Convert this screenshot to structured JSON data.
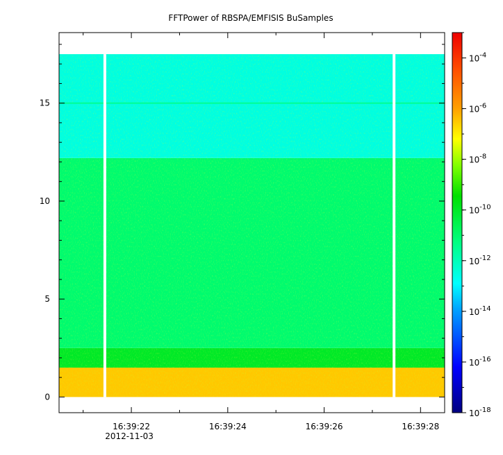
{
  "chart_data": {
    "type": "heatmap",
    "title": "FFTPower of RBSPA/EMFISIS  BuSamples",
    "xlabel": "",
    "ylabel": "",
    "x": {
      "type": "time",
      "range": [
        "16:39:20.5",
        "16:39:28.5"
      ],
      "major_ticks": [
        {
          "value": "16:39:22",
          "label": "16:39:22",
          "sublabel": "2012-11-03"
        },
        {
          "value": "16:39:24",
          "label": "16:39:24"
        },
        {
          "value": "16:39:26",
          "label": "16:39:26"
        },
        {
          "value": "16:39:28",
          "label": "16:39:28"
        }
      ],
      "minor_ticks": [
        "16:39:21",
        "16:39:23",
        "16:39:25",
        "16:39:27"
      ]
    },
    "y": {
      "range": [
        -0.8,
        18.6
      ],
      "ticks": [
        0,
        5,
        10,
        15
      ]
    },
    "colorbar": {
      "scale": "log",
      "range": [
        1e-18,
        0.001
      ],
      "tick_labels": [
        {
          "base": "10",
          "exp": "-4",
          "value": -4
        },
        {
          "base": "10",
          "exp": "-6",
          "value": -6
        },
        {
          "base": "10",
          "exp": "-8",
          "value": -8
        },
        {
          "base": "10",
          "exp": "-10",
          "value": -10
        },
        {
          "base": "10",
          "exp": "-12",
          "value": -12
        },
        {
          "base": "10",
          "exp": "-14",
          "value": -14
        },
        {
          "base": "10",
          "exp": "-16",
          "value": -16
        },
        {
          "base": "10",
          "exp": "-18",
          "value": -18
        }
      ]
    },
    "data_extent": {
      "time": [
        "16:39:20.5",
        "16:39:28.5"
      ],
      "y": [
        0,
        17.5
      ]
    },
    "gaps": [
      "16:39:21.45",
      "16:39:27.45"
    ],
    "bands": [
      {
        "y_range": [
          0,
          1.5
        ],
        "log10_power": -6.5
      },
      {
        "y_range": [
          1.5,
          2.5
        ],
        "log10_power": -10
      },
      {
        "y_range": [
          2.5,
          12.2
        ],
        "log10_power": -11
      },
      {
        "y_range": [
          12.2,
          17.5
        ],
        "log10_power": -12.5
      }
    ],
    "line_feature": {
      "y": 15.0,
      "log10_power": -11.5
    }
  },
  "colors": {
    "axis": "#000000",
    "gap": "#ffffff"
  }
}
